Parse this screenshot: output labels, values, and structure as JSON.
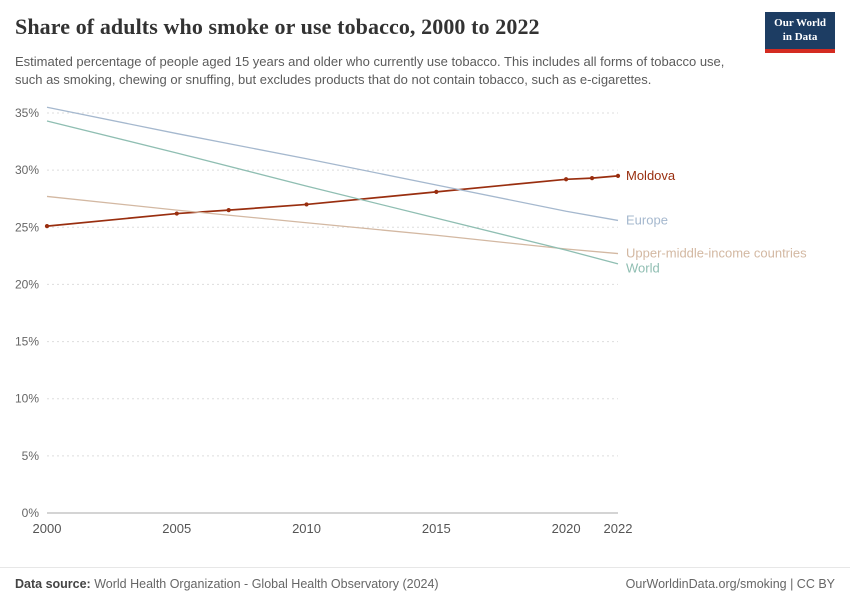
{
  "branding": {
    "logo_line1": "Our World",
    "logo_line2": "in Data",
    "logo_bg": "#1d3d63",
    "logo_accent": "#d42b21"
  },
  "chart_data": {
    "type": "line",
    "title": "Share of adults who smoke or use tobacco, 2000 to 2022",
    "subtitle": "Estimated percentage of people aged 15 years and older who currently use tobacco. This includes all forms of tobacco use, such as smoking, chewing or snuffing, but excludes products that do not contain tobacco, such as e-cigarettes.",
    "xlabel": "",
    "ylabel": "",
    "xlim": [
      2000,
      2022
    ],
    "ylim": [
      0,
      35
    ],
    "grid": "horizontal-dashed",
    "legend": "right-edge-labels",
    "x_ticks": [
      {
        "v": 2000,
        "label": "2000"
      },
      {
        "v": 2005,
        "label": "2005"
      },
      {
        "v": 2010,
        "label": "2010"
      },
      {
        "v": 2015,
        "label": "2015"
      },
      {
        "v": 2020,
        "label": "2020"
      },
      {
        "v": 2022,
        "label": "2022"
      }
    ],
    "y_ticks": [
      {
        "v": 0,
        "label": "0%"
      },
      {
        "v": 5,
        "label": "5%"
      },
      {
        "v": 10,
        "label": "10%"
      },
      {
        "v": 15,
        "label": "15%"
      },
      {
        "v": 20,
        "label": "20%"
      },
      {
        "v": 25,
        "label": "25%"
      },
      {
        "v": 30,
        "label": "30%"
      },
      {
        "v": 35,
        "label": "35%"
      }
    ],
    "series": [
      {
        "name": "Moldova",
        "color": "#992e0f",
        "markers": true,
        "x": [
          2000,
          2005,
          2007,
          2010,
          2015,
          2020,
          2021,
          2022
        ],
        "values": [
          25.1,
          26.2,
          26.5,
          27.0,
          28.1,
          29.2,
          29.3,
          29.5
        ]
      },
      {
        "name": "Europe",
        "color": "#a5b8ce",
        "markers": false,
        "x": [
          2000,
          2005,
          2010,
          2015,
          2020,
          2022
        ],
        "values": [
          35.5,
          33.2,
          31.0,
          28.7,
          26.4,
          25.6
        ]
      },
      {
        "name": "Upper-middle-income countries",
        "color": "#d3b8a2",
        "markers": false,
        "x": [
          2000,
          2005,
          2010,
          2015,
          2020,
          2022
        ],
        "values": [
          27.7,
          26.5,
          25.4,
          24.3,
          23.1,
          22.7
        ]
      },
      {
        "name": "World",
        "color": "#8fbeb2",
        "markers": false,
        "x": [
          2000,
          2005,
          2010,
          2015,
          2020,
          2022
        ],
        "values": [
          34.3,
          31.5,
          28.6,
          25.8,
          23.0,
          21.8
        ]
      }
    ]
  },
  "footer": {
    "source_label": "Data source:",
    "source_text": "World Health Organization - Global Health Observatory (2024)",
    "right_text": "OurWorldinData.org/smoking | CC BY"
  }
}
